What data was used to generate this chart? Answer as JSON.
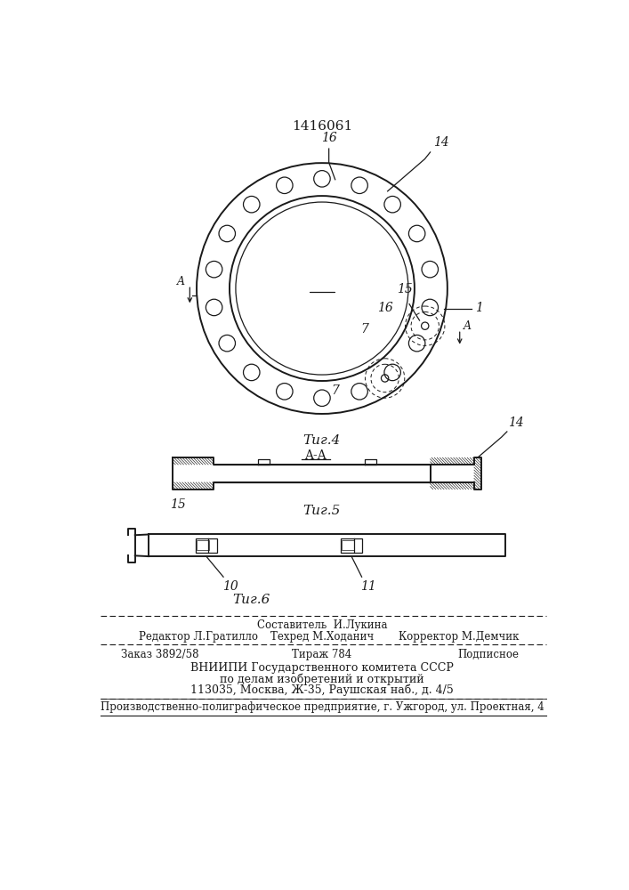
{
  "patent_number": "1416061",
  "fig4_label": "Τиг.4",
  "fig5_label": "Τиг.5",
  "fig6_label": "Τиг.6",
  "footer_sostavitel": "Составитель  И.Лукина",
  "footer_editor": "Редактор Л.Гратилло",
  "footer_techred": "Техред М.Ходанич",
  "footer_corrector": "Корректор М.Демчик",
  "footer_order": "Заказ 3892/58",
  "footer_tirazh": "Тираж 784",
  "footer_podpisnoe": "Подписное",
  "footer_vniip1": "ВНИИПИ Государственного комитета СССР",
  "footer_vniip2": "по делам изобретений и открытий",
  "footer_vniip3": "113035, Москва, Ж-35, Раушская наб., д. 4/5",
  "footer_prod": "Производственно-полиграфическое предприятие, г. Ужгород, ул. Проектная, 4",
  "bg_color": "#ffffff",
  "line_color": "#1a1a1a"
}
